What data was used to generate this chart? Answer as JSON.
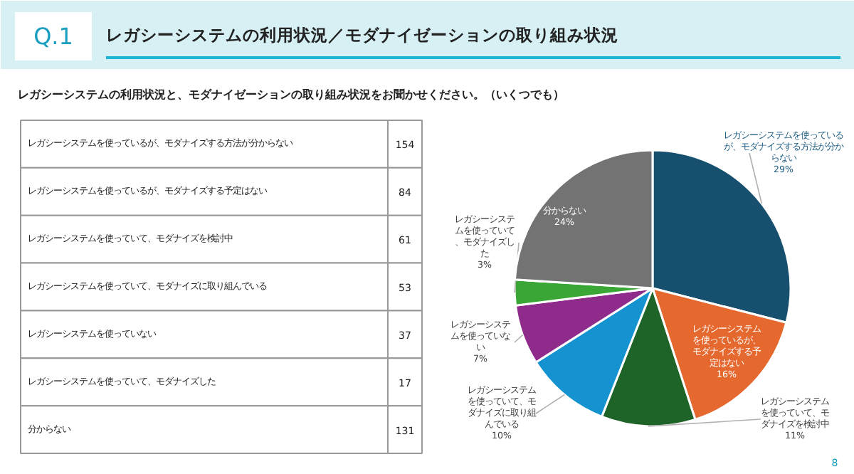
{
  "chart_data": [
    {
      "type": "other",
      "title": "レガシーシステムの利用状況／モダナイゼーションの取り組み状況",
      "subtitle": "レガシーシステムの利用状況と、モダナイゼーションの取り組み状況をお聞かせください。（いくつでも）",
      "categories": [
        "レガシーシステムを使っているが、モダナイズする方法が分からない",
        "レガシーシステムを使っているが、モダナイズする予定はない",
        "レガシーシステムを使っていて、モダナイズを検討中",
        "レガシーシステムを使っていて、モダナイズに取り組んでいる",
        "レガシーシステムを使っていない",
        "レガシーシステムを使っていて、モダナイズした",
        "分からない"
      ],
      "values": [
        154,
        84,
        61,
        53,
        37,
        17,
        131
      ],
      "data_labels": true,
      "annotations": [
        "Q.1"
      ]
    },
    {
      "type": "pie",
      "categories": [
        "レガシーシステムを使っているが、モダナイズする方法が分からない",
        "レガシーシステムを使っているが、モダナイズする予定はない",
        "レガシーシステムを使っていて、モダナイズを検討中",
        "レガシーシステムを使っていて、モダナイズに取り組んでいる",
        "レガシーシステムを使っていない",
        "レガシーシステムを使っていて、モダナイズした",
        "分からない"
      ],
      "values": [
        29,
        16,
        11,
        10,
        7,
        3,
        24
      ],
      "value_labels": [
        "29%",
        "16%",
        "11%",
        "10%",
        "7%",
        "3%",
        "24%"
      ],
      "colors": [
        "#17506f",
        "#e5682f",
        "#1e6327",
        "#1592d0",
        "#8e2b8b",
        "#3aa635",
        "#737373"
      ],
      "annotations": [
        "8"
      ]
    }
  ]
}
